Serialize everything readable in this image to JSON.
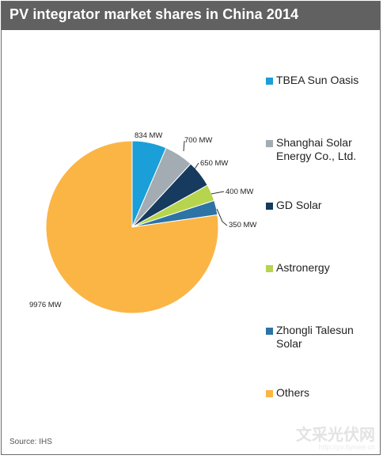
{
  "title": "PV integrator market shares in China 2014",
  "source": "Source: IHS",
  "watermark": {
    "main": "文采光伏网",
    "sub": "http://pv.flyisee.cn"
  },
  "colors": {
    "header_bg": "#616161",
    "TBEA Sun Oasis": "#1a9fd8",
    "Shanghai Solar Energy Co., Ltd.": "#a3acb3",
    "GD Solar": "#163b5e",
    "Astronergy": "#b7d44e",
    "Zhongli Talesun Solar": "#2d73a5",
    "Others": "#fbb545"
  },
  "chart_data": {
    "type": "pie",
    "title": "PV integrator market shares in China 2014",
    "unit": "MW",
    "slices": [
      {
        "label": "TBEA Sun Oasis",
        "value": 834,
        "data_label": "834 MW",
        "color": "#1a9fd8"
      },
      {
        "label": "Shanghai Solar Energy Co., Ltd.",
        "value": 700,
        "data_label": "700 MW",
        "color": "#a3acb3"
      },
      {
        "label": "GD Solar",
        "value": 650,
        "data_label": "650 MW",
        "color": "#163b5e"
      },
      {
        "label": "Astronergy",
        "value": 400,
        "data_label": "400 MW",
        "color": "#b7d44e"
      },
      {
        "label": "Zhongli Talesun Solar",
        "value": 350,
        "data_label": "350 MW",
        "color": "#2d73a5"
      },
      {
        "label": "Others",
        "value": 9976,
        "data_label": "9976 MW",
        "color": "#fbb545"
      }
    ],
    "legend": {
      "placement": "right",
      "entries": [
        {
          "label": "TBEA Sun Oasis",
          "color": "#1a9fd8"
        },
        {
          "label": "Shanghai Solar Energy Co., Ltd.",
          "color": "#a3acb3"
        },
        {
          "label": "GD Solar",
          "color": "#163b5e"
        },
        {
          "label": "Astronergy",
          "color": "#b7d44e"
        },
        {
          "label": "Zhongli Talesun Solar",
          "color": "#2d73a5"
        },
        {
          "label": "Others",
          "color": "#fbb545"
        }
      ]
    }
  }
}
